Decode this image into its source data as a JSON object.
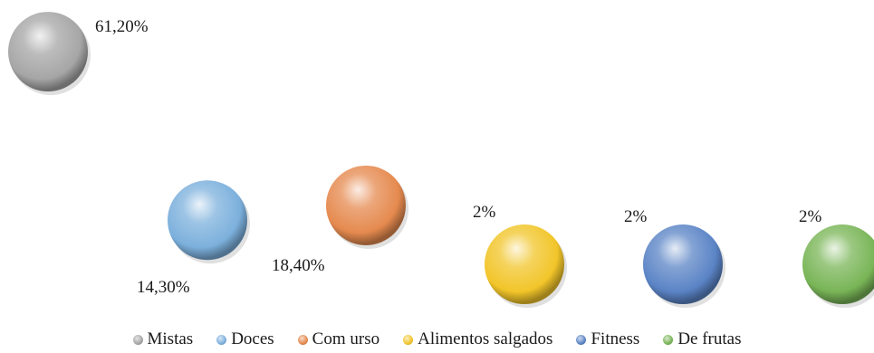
{
  "chart_data": {
    "type": "scatter",
    "style": "3d-spheres",
    "legend_position": "bottom",
    "grid": false,
    "series": [
      {
        "name": "Mistas",
        "value": 61.2,
        "label": "61,20%",
        "color": "#a6a6a6"
      },
      {
        "name": "Doces",
        "value": 14.3,
        "label": "14,30%",
        "color": "#7cb0dc"
      },
      {
        "name": "Com urso",
        "value": 18.4,
        "label": "18,40%",
        "color": "#e58a4f"
      },
      {
        "name": "Alimentos salgados",
        "value": 2,
        "label": "2%",
        "color": "#f2c52a"
      },
      {
        "name": "Fitness",
        "value": 2,
        "label": "2%",
        "color": "#5b84c6"
      },
      {
        "name": "De frutas",
        "value": 2,
        "label": "2%",
        "color": "#79b557"
      }
    ]
  }
}
